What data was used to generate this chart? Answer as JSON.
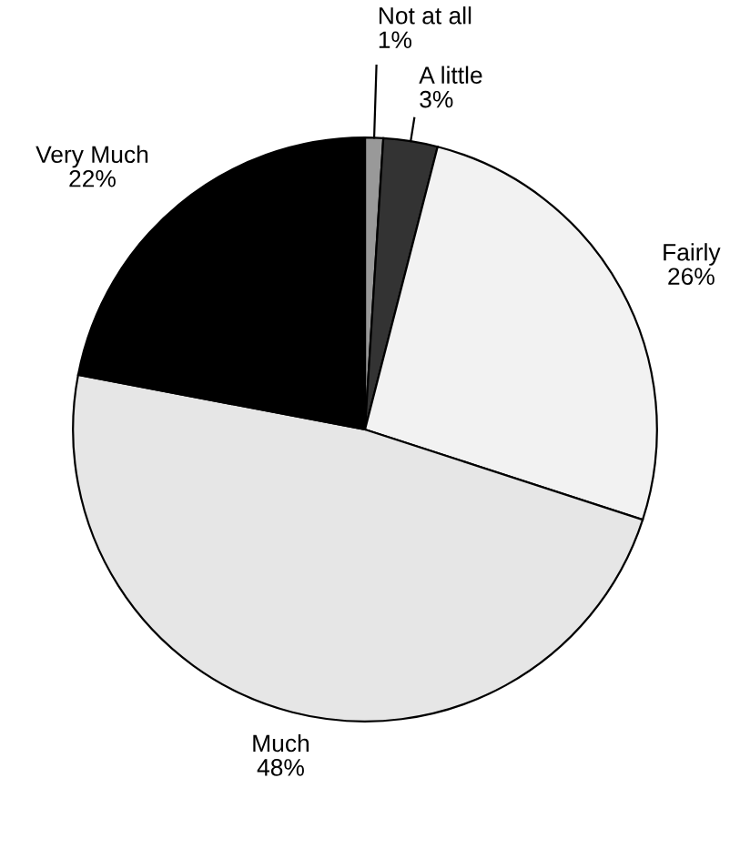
{
  "chart_data": {
    "type": "pie",
    "categories": [
      "Not at all",
      "A little",
      "Fairly",
      "Much",
      "Very Much"
    ],
    "values": [
      1,
      3,
      26,
      48,
      22
    ],
    "value_labels": [
      "1%",
      "3%",
      "26%",
      "48%",
      "22%"
    ],
    "colors": [
      "#999999",
      "#333333",
      "#f2f2f2",
      "#e6e6e6",
      "#000000"
    ],
    "legend": false
  }
}
